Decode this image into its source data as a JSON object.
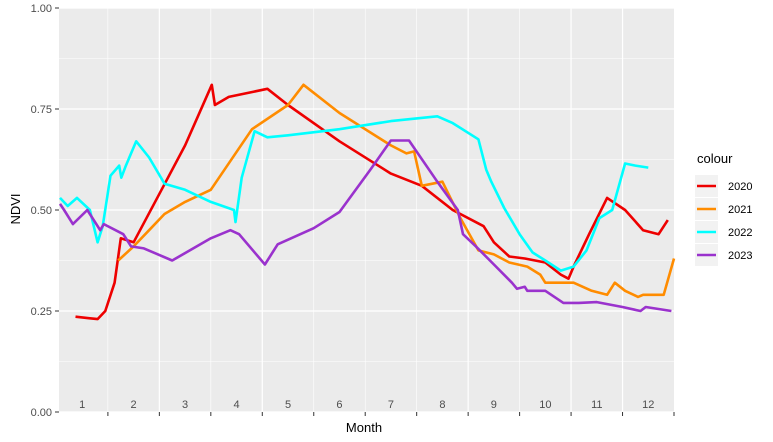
{
  "chart_data": {
    "type": "line",
    "xlabel": "Month",
    "ylabel": "NDVI",
    "ylim": [
      0,
      1
    ],
    "xlim": [
      0.55,
      12.5
    ],
    "yticks": [
      0.0,
      0.25,
      0.5,
      0.75,
      1.0
    ],
    "ytick_labels": [
      "0.00",
      "0.25",
      "0.50",
      "0.75",
      "1.00"
    ],
    "month_labels": [
      "1",
      "2",
      "3",
      "4",
      "5",
      "6",
      "7",
      "8",
      "9",
      "10",
      "11",
      "12"
    ],
    "grid": true,
    "legend_title": "colour",
    "legend_position": "right",
    "series": [
      {
        "name": "2020",
        "color": "#ee0000",
        "points": [
          [
            0.87,
            0.236
          ],
          [
            1.15,
            0.232
          ],
          [
            1.3,
            0.23
          ],
          [
            1.45,
            0.25
          ],
          [
            1.63,
            0.32
          ],
          [
            1.75,
            0.43
          ],
          [
            2.0,
            0.42
          ],
          [
            2.5,
            0.54
          ],
          [
            3.0,
            0.66
          ],
          [
            3.52,
            0.81
          ],
          [
            3.58,
            0.76
          ],
          [
            3.85,
            0.78
          ],
          [
            4.6,
            0.8
          ],
          [
            5.0,
            0.76
          ],
          [
            6.0,
            0.67
          ],
          [
            7.0,
            0.59
          ],
          [
            7.6,
            0.56
          ],
          [
            8.2,
            0.5
          ],
          [
            8.8,
            0.46
          ],
          [
            9.0,
            0.42
          ],
          [
            9.3,
            0.385
          ],
          [
            9.6,
            0.38
          ],
          [
            10.0,
            0.37
          ],
          [
            10.3,
            0.34
          ],
          [
            10.45,
            0.33
          ],
          [
            10.55,
            0.36
          ],
          [
            10.85,
            0.44
          ],
          [
            11.2,
            0.53
          ],
          [
            11.55,
            0.5
          ],
          [
            11.9,
            0.45
          ],
          [
            12.2,
            0.44
          ],
          [
            12.38,
            0.475
          ]
        ]
      },
      {
        "name": "2021",
        "color": "#ff8c00",
        "points": [
          [
            1.7,
            0.375
          ],
          [
            2.0,
            0.41
          ],
          [
            2.3,
            0.45
          ],
          [
            2.6,
            0.49
          ],
          [
            3.0,
            0.52
          ],
          [
            3.5,
            0.55
          ],
          [
            4.3,
            0.7
          ],
          [
            5.0,
            0.76
          ],
          [
            5.3,
            0.81
          ],
          [
            6.0,
            0.74
          ],
          [
            7.0,
            0.66
          ],
          [
            7.3,
            0.64
          ],
          [
            7.45,
            0.645
          ],
          [
            7.6,
            0.56
          ],
          [
            8.0,
            0.57
          ],
          [
            8.35,
            0.48
          ],
          [
            8.7,
            0.4
          ],
          [
            9.0,
            0.39
          ],
          [
            9.3,
            0.37
          ],
          [
            9.65,
            0.36
          ],
          [
            9.9,
            0.34
          ],
          [
            10.0,
            0.32
          ],
          [
            10.3,
            0.32
          ],
          [
            10.55,
            0.32
          ],
          [
            10.9,
            0.3
          ],
          [
            11.2,
            0.29
          ],
          [
            11.35,
            0.32
          ],
          [
            11.55,
            0.3
          ],
          [
            11.8,
            0.285
          ],
          [
            11.9,
            0.29
          ],
          [
            12.3,
            0.29
          ],
          [
            12.5,
            0.38
          ]
        ]
      },
      {
        "name": "2022",
        "color": "#00ffff",
        "points": [
          [
            0.57,
            0.53
          ],
          [
            0.72,
            0.51
          ],
          [
            0.9,
            0.53
          ],
          [
            1.15,
            0.5
          ],
          [
            1.3,
            0.42
          ],
          [
            1.4,
            0.46
          ],
          [
            1.55,
            0.585
          ],
          [
            1.72,
            0.61
          ],
          [
            1.76,
            0.58
          ],
          [
            1.85,
            0.61
          ],
          [
            2.05,
            0.67
          ],
          [
            2.3,
            0.63
          ],
          [
            2.6,
            0.565
          ],
          [
            3.0,
            0.55
          ],
          [
            3.5,
            0.52
          ],
          [
            3.95,
            0.5
          ],
          [
            3.98,
            0.47
          ],
          [
            4.1,
            0.58
          ],
          [
            4.35,
            0.695
          ],
          [
            4.6,
            0.68
          ],
          [
            5.0,
            0.685
          ],
          [
            6.0,
            0.7
          ],
          [
            7.0,
            0.72
          ],
          [
            7.9,
            0.732
          ],
          [
            8.2,
            0.715
          ],
          [
            8.7,
            0.675
          ],
          [
            8.85,
            0.6
          ],
          [
            8.95,
            0.57
          ],
          [
            9.2,
            0.505
          ],
          [
            9.5,
            0.44
          ],
          [
            9.75,
            0.395
          ],
          [
            10.0,
            0.375
          ],
          [
            10.3,
            0.35
          ],
          [
            10.55,
            0.36
          ],
          [
            10.8,
            0.4
          ],
          [
            11.05,
            0.48
          ],
          [
            11.3,
            0.5
          ],
          [
            11.55,
            0.615
          ],
          [
            11.75,
            0.61
          ],
          [
            12.0,
            0.605
          ]
        ]
      },
      {
        "name": "2023",
        "color": "#9a32cd",
        "points": [
          [
            0.57,
            0.515
          ],
          [
            0.65,
            0.5
          ],
          [
            0.82,
            0.465
          ],
          [
            1.1,
            0.5
          ],
          [
            1.35,
            0.45
          ],
          [
            1.42,
            0.465
          ],
          [
            1.8,
            0.44
          ],
          [
            1.95,
            0.41
          ],
          [
            2.2,
            0.405
          ],
          [
            2.75,
            0.375
          ],
          [
            3.5,
            0.43
          ],
          [
            3.88,
            0.45
          ],
          [
            4.05,
            0.44
          ],
          [
            4.55,
            0.365
          ],
          [
            4.8,
            0.415
          ],
          [
            5.5,
            0.455
          ],
          [
            6.0,
            0.495
          ],
          [
            6.6,
            0.6
          ],
          [
            7.0,
            0.672
          ],
          [
            7.35,
            0.672
          ],
          [
            7.9,
            0.57
          ],
          [
            8.3,
            0.5
          ],
          [
            8.4,
            0.44
          ],
          [
            8.65,
            0.41
          ],
          [
            9.0,
            0.365
          ],
          [
            9.35,
            0.32
          ],
          [
            9.45,
            0.305
          ],
          [
            9.6,
            0.31
          ],
          [
            9.65,
            0.3
          ],
          [
            10.0,
            0.3
          ],
          [
            10.35,
            0.27
          ],
          [
            10.65,
            0.27
          ],
          [
            11.0,
            0.272
          ],
          [
            11.5,
            0.26
          ],
          [
            11.85,
            0.25
          ],
          [
            11.95,
            0.26
          ],
          [
            12.45,
            0.25
          ]
        ]
      }
    ]
  }
}
